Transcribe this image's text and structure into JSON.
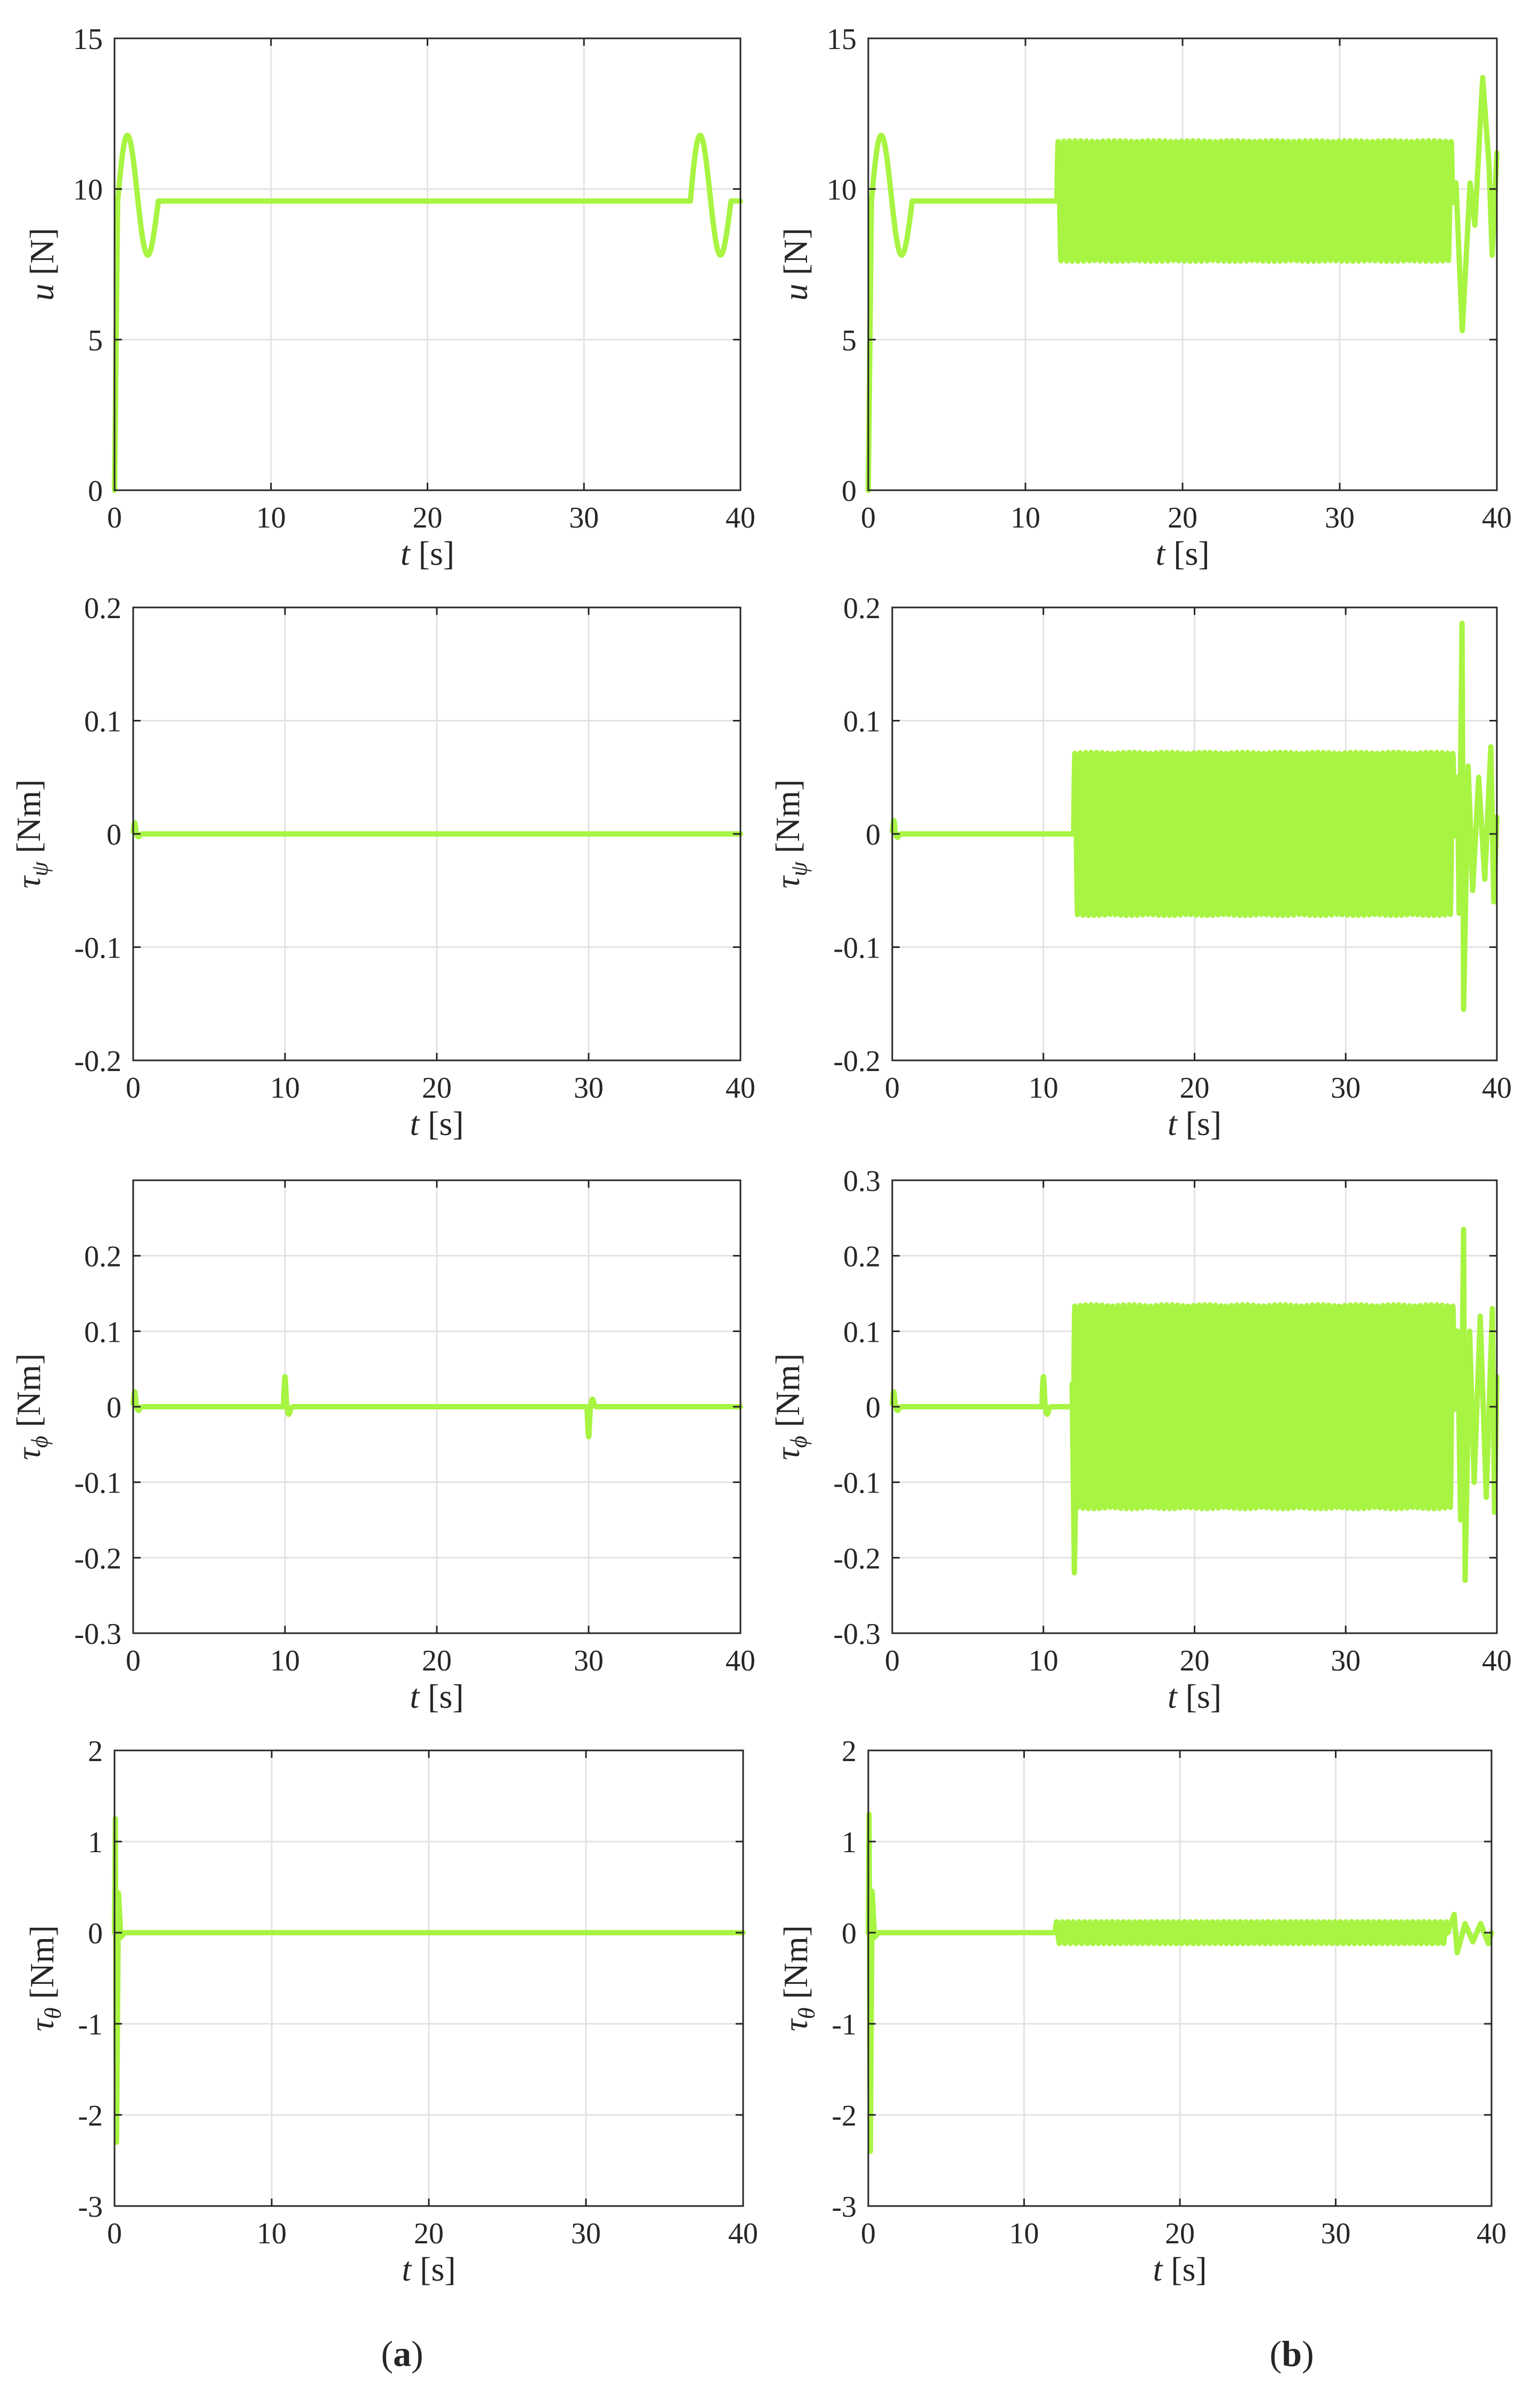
{
  "figure": {
    "panel_labels": [
      {
        "open": "(",
        "letter": "a",
        "close": ")"
      },
      {
        "open": "(",
        "letter": "b",
        "close": ")"
      }
    ],
    "series_color": "#a8f442"
  },
  "chart_data": [
    {
      "id": "u-a",
      "type": "line",
      "xlabel": {
        "sym": "t",
        "unit": "[s]"
      },
      "ylabel": {
        "sym": "u",
        "sub": "",
        "unit": "[N]"
      },
      "xlim": [
        0,
        40
      ],
      "ylim": [
        0,
        15
      ],
      "xticks": [
        0,
        10,
        20,
        30,
        40
      ],
      "yticks": [
        0,
        5,
        10,
        15
      ],
      "ytick_labels": [
        "0",
        "5",
        "10",
        "15"
      ],
      "grid": true,
      "base": 9.6,
      "startup": true,
      "events": [
        {
          "t": 0.2,
          "type": "u-rise"
        },
        {
          "t": 36.8,
          "type": "u-rise"
        }
      ],
      "osc": null,
      "spikes": []
    },
    {
      "id": "u-b",
      "type": "line",
      "xlabel": {
        "sym": "t",
        "unit": "[s]"
      },
      "ylabel": {
        "sym": "u",
        "sub": "",
        "unit": "[N]"
      },
      "xlim": [
        0,
        40
      ],
      "ylim": [
        0,
        15
      ],
      "xticks": [
        0,
        10,
        20,
        30,
        40
      ],
      "yticks": [
        0,
        5,
        10,
        15
      ],
      "ytick_labels": [
        "0",
        "5",
        "10",
        "15"
      ],
      "grid": true,
      "base": 9.6,
      "startup": true,
      "events": [
        {
          "t": 0.2,
          "type": "u-rise"
        }
      ],
      "osc": {
        "start": 12,
        "end": 37.2,
        "amp": 2,
        "freq": 2.8
      },
      "spikes": [
        {
          "t": 37.4,
          "v": 10.2
        },
        {
          "t": 37.8,
          "v": 5.3
        },
        {
          "t": 38.3,
          "v": 10.2
        },
        {
          "t": 38.6,
          "v": 8.8
        },
        {
          "t": 39.1,
          "v": 13.7
        },
        {
          "t": 39.5,
          "v": 10.8
        },
        {
          "t": 39.7,
          "v": 7.8
        },
        {
          "t": 40,
          "v": 11.2
        }
      ]
    },
    {
      "id": "tpsi-a",
      "type": "line",
      "xlabel": {
        "sym": "t",
        "unit": "[s]"
      },
      "ylabel": {
        "sym": "τ",
        "sub": "ψ",
        "unit": "[Nm]"
      },
      "xlim": [
        0,
        40
      ],
      "ylim": [
        -0.2,
        0.2
      ],
      "xticks": [
        0,
        10,
        20,
        30,
        40
      ],
      "yticks": [
        -0.2,
        -0.1,
        0,
        0.1,
        0.2
      ],
      "ytick_labels": [
        "-0.2",
        "-0.1",
        "0",
        "0.1",
        "0.2"
      ],
      "grid": true,
      "base": 0,
      "startup": false,
      "events": [
        {
          "t": 0.1,
          "type": "blip",
          "amp": 0.01
        }
      ],
      "osc": null,
      "spikes": []
    },
    {
      "id": "tpsi-b",
      "type": "line",
      "xlabel": {
        "sym": "t",
        "unit": "[s]"
      },
      "ylabel": {
        "sym": "τ",
        "sub": "ψ",
        "unit": "[Nm]"
      },
      "xlim": [
        0,
        40
      ],
      "ylim": [
        -0.2,
        0.2
      ],
      "xticks": [
        0,
        10,
        20,
        30,
        40
      ],
      "yticks": [
        -0.2,
        -0.1,
        0,
        0.1,
        0.2
      ],
      "ytick_labels": [
        "-0.2",
        "-0.1",
        "0",
        "0.1",
        "0.2"
      ],
      "grid": true,
      "base": 0,
      "startup": false,
      "events": [
        {
          "t": 0.1,
          "type": "blip",
          "amp": 0.012
        }
      ],
      "osc": {
        "start": 12,
        "end": 37.2,
        "amp": 0.072,
        "freq": 2.8
      },
      "spikes": [
        {
          "t": 37.4,
          "v": 0.05
        },
        {
          "t": 37.5,
          "v": -0.07
        },
        {
          "t": 37.7,
          "v": 0.186
        },
        {
          "t": 37.8,
          "v": -0.155
        },
        {
          "t": 38.1,
          "v": 0.06
        },
        {
          "t": 38.4,
          "v": -0.05
        },
        {
          "t": 38.8,
          "v": 0.05
        },
        {
          "t": 39.2,
          "v": -0.04
        },
        {
          "t": 39.6,
          "v": 0.077
        },
        {
          "t": 39.8,
          "v": -0.06
        },
        {
          "t": 40,
          "v": 0.015
        }
      ]
    },
    {
      "id": "tphi-a",
      "type": "line",
      "xlabel": {
        "sym": "t",
        "unit": "[s]"
      },
      "ylabel": {
        "sym": "τ",
        "sub": "ϕ",
        "unit": "[Nm]"
      },
      "xlim": [
        0,
        40
      ],
      "ylim": [
        -0.3,
        0.3
      ],
      "xticks": [
        0,
        10,
        20,
        30,
        40
      ],
      "yticks": [
        -0.3,
        -0.2,
        -0.1,
        0,
        0.1,
        0.2
      ],
      "ytick_labels": [
        "-0.3",
        "-0.2",
        "-0.1",
        "0",
        "0.1",
        "0.2"
      ],
      "grid": true,
      "base": 0,
      "startup": false,
      "events": [
        {
          "t": 0.1,
          "type": "blip",
          "amp": 0.02
        },
        {
          "t": 10,
          "type": "blip",
          "amp": 0.04
        },
        {
          "t": 30,
          "type": "blip",
          "amp": -0.04
        }
      ],
      "osc": null,
      "spikes": []
    },
    {
      "id": "tphi-b",
      "type": "line",
      "xlabel": {
        "sym": "t",
        "unit": "[s]"
      },
      "ylabel": {
        "sym": "τ",
        "sub": "ϕ",
        "unit": "[Nm]"
      },
      "xlim": [
        0,
        40
      ],
      "ylim": [
        -0.3,
        0.3
      ],
      "xticks": [
        0,
        10,
        20,
        30,
        40
      ],
      "yticks": [
        -0.3,
        -0.2,
        -0.1,
        0,
        0.1,
        0.2,
        0.3
      ],
      "ytick_labels": [
        "-0.3",
        "-0.2",
        "-0.1",
        "0",
        "0.1",
        "0.2",
        "0.3"
      ],
      "grid": true,
      "base": 0,
      "startup": false,
      "events": [
        {
          "t": 0.1,
          "type": "blip",
          "amp": 0.02
        },
        {
          "t": 10,
          "type": "blip",
          "amp": 0.04
        }
      ],
      "osc": {
        "start": 12,
        "end": 37.2,
        "amp": 0.135,
        "freq": 2.8
      },
      "spikes": [
        {
          "t": 11.9,
          "v": 0.03
        },
        {
          "t": 12.05,
          "v": -0.22
        },
        {
          "t": 12.3,
          "v": 0.1
        },
        {
          "t": 37.4,
          "v": 0.1
        },
        {
          "t": 37.6,
          "v": -0.15
        },
        {
          "t": 37.8,
          "v": 0.235
        },
        {
          "t": 37.9,
          "v": -0.23
        },
        {
          "t": 38.2,
          "v": 0.1
        },
        {
          "t": 38.5,
          "v": -0.1
        },
        {
          "t": 38.9,
          "v": 0.12
        },
        {
          "t": 39.3,
          "v": -0.12
        },
        {
          "t": 39.7,
          "v": 0.13
        },
        {
          "t": 39.85,
          "v": -0.14
        },
        {
          "t": 40,
          "v": 0.04
        }
      ]
    },
    {
      "id": "ttheta-a",
      "type": "line",
      "xlabel": {
        "sym": "t",
        "unit": "[s]"
      },
      "ylabel": {
        "sym": "τ",
        "sub": "θ",
        "unit": "[Nm]"
      },
      "xlim": [
        0,
        40
      ],
      "ylim": [
        -3,
        2
      ],
      "xticks": [
        0,
        10,
        20,
        30,
        40
      ],
      "yticks": [
        -3,
        -2,
        -1,
        0,
        1,
        2
      ],
      "ytick_labels": [
        "-3",
        "-2",
        "-1",
        "0",
        "1",
        "2"
      ],
      "grid": true,
      "base": 0,
      "startup": false,
      "events": [
        {
          "t": 0.05,
          "type": "kick",
          "hi": 1.25,
          "lo": -2.3
        }
      ],
      "osc": null,
      "spikes": []
    },
    {
      "id": "ttheta-b",
      "type": "line",
      "xlabel": {
        "sym": "t",
        "unit": "[s]"
      },
      "ylabel": {
        "sym": "τ",
        "sub": "θ",
        "unit": "[Nm]"
      },
      "xlim": [
        0,
        40
      ],
      "ylim": [
        -3,
        2
      ],
      "xticks": [
        0,
        10,
        20,
        30,
        40
      ],
      "yticks": [
        -3,
        -2,
        -1,
        0,
        1,
        2
      ],
      "ytick_labels": [
        "-3",
        "-2",
        "-1",
        "0",
        "1",
        "2"
      ],
      "grid": true,
      "base": 0,
      "startup": false,
      "events": [
        {
          "t": 0.05,
          "type": "kick",
          "hi": 1.3,
          "lo": -2.4
        }
      ],
      "osc": {
        "start": 12,
        "end": 37.2,
        "amp": 0.12,
        "freq": 2.8
      },
      "spikes": [
        {
          "t": 37.6,
          "v": 0.2
        },
        {
          "t": 37.8,
          "v": -0.22
        },
        {
          "t": 38.3,
          "v": 0.1
        },
        {
          "t": 38.8,
          "v": -0.1
        },
        {
          "t": 39.3,
          "v": 0.1
        },
        {
          "t": 39.8,
          "v": -0.12
        },
        {
          "t": 40,
          "v": 0
        }
      ]
    }
  ]
}
